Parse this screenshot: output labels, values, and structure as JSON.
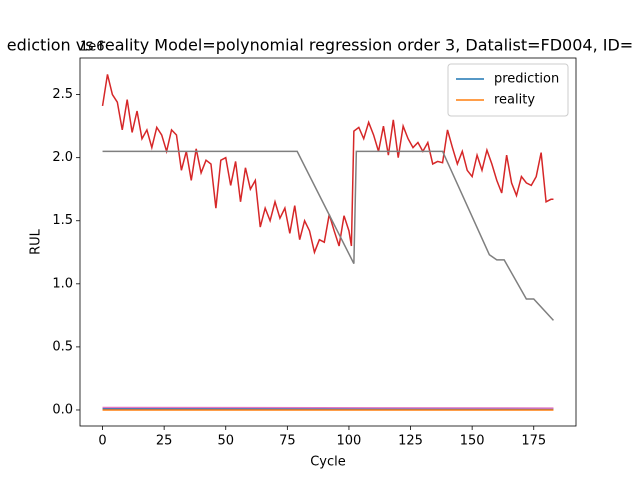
{
  "chart_data": {
    "type": "line",
    "title": "ediction vs reality Model=polynomial regression order 3, Datalist=FD004, ID=",
    "x_label": "Cycle",
    "y_label": "RUL",
    "y_offset_label": "1e6",
    "xlim": [
      -9.15,
      192.15
    ],
    "ylim": [
      -0.127,
      2.79
    ],
    "xticks": [
      0,
      25,
      50,
      75,
      100,
      125,
      150,
      175
    ],
    "yticks": [
      {
        "value": 0,
        "label": "0.0"
      },
      {
        "value": 0.5,
        "label": "0.5"
      },
      {
        "value": 1,
        "label": "1.0"
      },
      {
        "value": 1.5,
        "label": "1.5"
      },
      {
        "value": 2,
        "label": "2.0"
      },
      {
        "value": 2.5,
        "label": "2.5"
      }
    ],
    "legend": "upper right",
    "series": [
      {
        "name": "prediction",
        "color": "#1f77b4",
        "x": [
          0,
          183
        ],
        "values": [
          0.01,
          0.01
        ]
      },
      {
        "name": "reality",
        "color": "#ff7f0e",
        "x": [
          0,
          183
        ],
        "values": [
          0,
          0
        ]
      },
      {
        "color": "#d62728",
        "x": [
          0,
          2,
          4,
          6,
          8,
          10,
          12,
          14,
          16,
          18,
          20,
          22,
          24,
          26,
          28,
          30,
          32,
          34,
          36,
          38,
          40,
          42,
          44,
          46,
          48,
          50,
          52,
          54,
          56,
          58,
          60,
          62,
          64,
          66,
          68,
          70,
          72,
          74,
          76,
          78,
          80,
          82,
          84,
          86,
          88,
          90,
          92,
          94,
          96,
          98,
          100,
          101,
          102,
          104,
          106,
          108,
          110,
          112,
          114,
          116,
          118,
          120,
          122,
          124,
          126,
          128,
          130,
          132,
          134,
          136,
          138,
          140,
          142,
          144,
          146,
          148,
          150,
          152,
          154,
          156,
          158,
          160,
          162,
          164,
          166,
          168,
          170,
          172,
          174,
          176,
          178,
          180,
          182,
          183
        ],
        "values": [
          2.41,
          2.66,
          2.5,
          2.44,
          2.22,
          2.46,
          2.2,
          2.37,
          2.15,
          2.22,
          2.08,
          2.24,
          2.18,
          2.05,
          2.22,
          2.18,
          1.9,
          2.05,
          1.82,
          2.07,
          1.88,
          1.98,
          1.95,
          1.6,
          1.98,
          2.0,
          1.78,
          1.97,
          1.65,
          1.92,
          1.75,
          1.82,
          1.45,
          1.6,
          1.5,
          1.65,
          1.52,
          1.6,
          1.4,
          1.62,
          1.35,
          1.5,
          1.42,
          1.25,
          1.35,
          1.33,
          1.55,
          1.42,
          1.3,
          1.54,
          1.42,
          1.3,
          2.21,
          2.24,
          2.15,
          2.28,
          2.18,
          2.05,
          2.25,
          2.02,
          2.3,
          2.0,
          2.25,
          2.15,
          2.08,
          2.12,
          2.05,
          2.12,
          1.95,
          1.97,
          1.96,
          2.22,
          2.08,
          1.95,
          2.05,
          1.9,
          1.85,
          2.02,
          1.9,
          2.06,
          1.95,
          1.82,
          1.72,
          2.02,
          1.8,
          1.7,
          1.85,
          1.8,
          1.78,
          1.85,
          2.04,
          1.65,
          1.67,
          1.67
        ]
      },
      {
        "color": "#7f7f7f",
        "x": [
          0,
          79,
          102,
          103,
          138,
          157,
          160,
          163,
          172,
          175,
          183
        ],
        "values": [
          2.05,
          2.05,
          1.16,
          2.05,
          2.05,
          1.23,
          1.19,
          1.19,
          0.88,
          0.88,
          0.71
        ]
      },
      {
        "color": "#e377c2",
        "x": [
          0,
          183
        ],
        "values": [
          0.02,
          0.015
        ]
      }
    ]
  }
}
